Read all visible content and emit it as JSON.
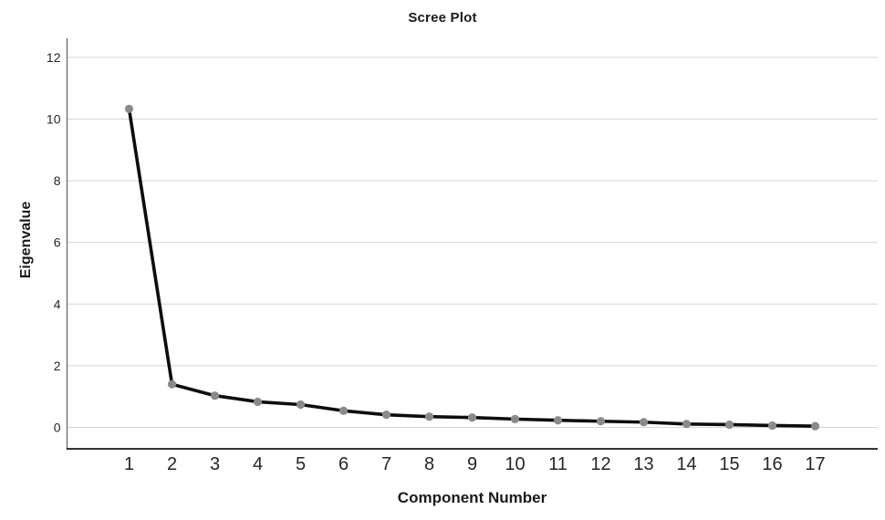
{
  "chart_data": {
    "type": "line",
    "title": "Scree Plot",
    "xlabel": "Component Number",
    "ylabel": "Eigenvalue",
    "categories": [
      1,
      2,
      3,
      4,
      5,
      6,
      7,
      8,
      9,
      10,
      11,
      12,
      13,
      14,
      15,
      16,
      17
    ],
    "values": [
      10.33,
      1.4,
      1.03,
      0.83,
      0.74,
      0.54,
      0.41,
      0.35,
      0.32,
      0.27,
      0.23,
      0.2,
      0.17,
      0.11,
      0.09,
      0.06,
      0.04
    ],
    "series_name": "Eigenvalue",
    "y_ticks": [
      0,
      2,
      4,
      6,
      8,
      10,
      12
    ],
    "ylim": [
      0,
      12
    ],
    "xlim": [
      1,
      17
    ],
    "grid": "horizontal",
    "legend": false,
    "colors": {
      "line": "#0d0d0d",
      "marker": "#8a8a8a",
      "gridline": "#d4d4d4",
      "axis_left": "#6e6e6e",
      "axis_bottom": "#333333",
      "tick_text": "#262626",
      "background": "#ffffff"
    }
  }
}
